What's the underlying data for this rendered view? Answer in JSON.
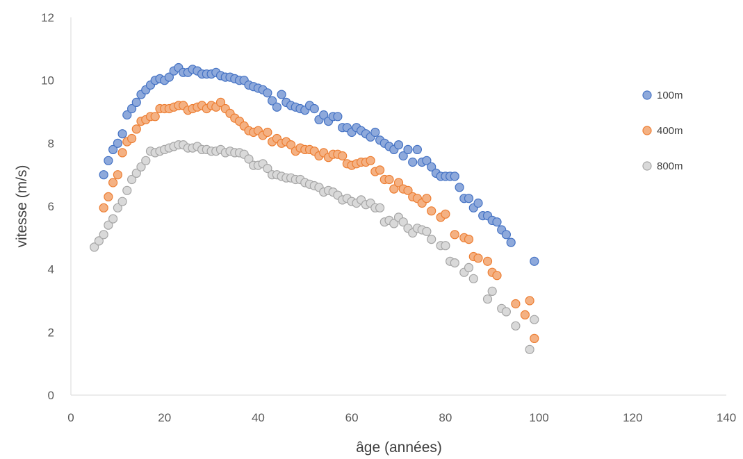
{
  "chart_data": {
    "type": "scatter",
    "xlabel": "âge (années)",
    "ylabel": "vitesse (m/s)",
    "xlim": [
      0,
      140
    ],
    "ylim": [
      0,
      12
    ],
    "xticks": [
      0,
      20,
      40,
      60,
      80,
      100,
      120,
      140
    ],
    "yticks": [
      0,
      2,
      4,
      6,
      8,
      10,
      12
    ],
    "grid": false,
    "legend_position": "right",
    "series": [
      {
        "name": "100m",
        "color": "#4472C4",
        "fill": "#8EA9DB",
        "points": [
          [
            7,
            7.0
          ],
          [
            8,
            7.45
          ],
          [
            9,
            7.8
          ],
          [
            10,
            8.0
          ],
          [
            11,
            8.3
          ],
          [
            12,
            8.9
          ],
          [
            13,
            9.1
          ],
          [
            14,
            9.3
          ],
          [
            15,
            9.55
          ],
          [
            16,
            9.7
          ],
          [
            17,
            9.85
          ],
          [
            18,
            10.0
          ],
          [
            19,
            10.05
          ],
          [
            20,
            10.0
          ],
          [
            21,
            10.1
          ],
          [
            22,
            10.3
          ],
          [
            23,
            10.4
          ],
          [
            24,
            10.25
          ],
          [
            25,
            10.25
          ],
          [
            26,
            10.35
          ],
          [
            27,
            10.3
          ],
          [
            28,
            10.2
          ],
          [
            29,
            10.2
          ],
          [
            30,
            10.2
          ],
          [
            31,
            10.25
          ],
          [
            32,
            10.15
          ],
          [
            33,
            10.1
          ],
          [
            34,
            10.1
          ],
          [
            35,
            10.05
          ],
          [
            36,
            10.0
          ],
          [
            37,
            10.0
          ],
          [
            38,
            9.85
          ],
          [
            39,
            9.8
          ],
          [
            40,
            9.75
          ],
          [
            41,
            9.7
          ],
          [
            42,
            9.6
          ],
          [
            43,
            9.35
          ],
          [
            44,
            9.15
          ],
          [
            45,
            9.55
          ],
          [
            46,
            9.3
          ],
          [
            47,
            9.2
          ],
          [
            48,
            9.15
          ],
          [
            49,
            9.1
          ],
          [
            50,
            9.05
          ],
          [
            51,
            9.2
          ],
          [
            52,
            9.1
          ],
          [
            53,
            8.75
          ],
          [
            54,
            8.9
          ],
          [
            55,
            8.7
          ],
          [
            56,
            8.85
          ],
          [
            57,
            8.85
          ],
          [
            58,
            8.5
          ],
          [
            59,
            8.5
          ],
          [
            60,
            8.35
          ],
          [
            61,
            8.5
          ],
          [
            62,
            8.4
          ],
          [
            63,
            8.3
          ],
          [
            64,
            8.2
          ],
          [
            65,
            8.35
          ],
          [
            66,
            8.1
          ],
          [
            67,
            8.0
          ],
          [
            68,
            7.9
          ],
          [
            69,
            7.8
          ],
          [
            70,
            7.95
          ],
          [
            71,
            7.6
          ],
          [
            72,
            7.8
          ],
          [
            73,
            7.4
          ],
          [
            74,
            7.8
          ],
          [
            75,
            7.4
          ],
          [
            76,
            7.45
          ],
          [
            77,
            7.25
          ],
          [
            78,
            7.05
          ],
          [
            79,
            6.95
          ],
          [
            80,
            6.95
          ],
          [
            81,
            6.95
          ],
          [
            82,
            6.95
          ],
          [
            83,
            6.6
          ],
          [
            84,
            6.25
          ],
          [
            85,
            6.25
          ],
          [
            86,
            5.95
          ],
          [
            87,
            6.1
          ],
          [
            88,
            5.7
          ],
          [
            89,
            5.7
          ],
          [
            90,
            5.55
          ],
          [
            91,
            5.5
          ],
          [
            92,
            5.25
          ],
          [
            93,
            5.1
          ],
          [
            94,
            4.85
          ],
          [
            99,
            4.25
          ]
        ]
      },
      {
        "name": "400m",
        "color": "#ED7D31",
        "fill": "#F4B183",
        "points": [
          [
            7,
            5.95
          ],
          [
            8,
            6.3
          ],
          [
            9,
            6.75
          ],
          [
            10,
            7.0
          ],
          [
            11,
            7.7
          ],
          [
            12,
            8.05
          ],
          [
            13,
            8.15
          ],
          [
            14,
            8.45
          ],
          [
            15,
            8.7
          ],
          [
            16,
            8.75
          ],
          [
            17,
            8.85
          ],
          [
            18,
            8.85
          ],
          [
            19,
            9.1
          ],
          [
            20,
            9.1
          ],
          [
            21,
            9.1
          ],
          [
            22,
            9.15
          ],
          [
            23,
            9.2
          ],
          [
            24,
            9.2
          ],
          [
            25,
            9.05
          ],
          [
            26,
            9.1
          ],
          [
            27,
            9.15
          ],
          [
            28,
            9.2
          ],
          [
            29,
            9.1
          ],
          [
            30,
            9.2
          ],
          [
            31,
            9.15
          ],
          [
            32,
            9.3
          ],
          [
            33,
            9.1
          ],
          [
            34,
            8.95
          ],
          [
            35,
            8.8
          ],
          [
            36,
            8.7
          ],
          [
            37,
            8.55
          ],
          [
            38,
            8.4
          ],
          [
            39,
            8.35
          ],
          [
            40,
            8.4
          ],
          [
            41,
            8.25
          ],
          [
            42,
            8.35
          ],
          [
            43,
            8.05
          ],
          [
            44,
            8.15
          ],
          [
            45,
            8.0
          ],
          [
            46,
            8.05
          ],
          [
            47,
            7.95
          ],
          [
            48,
            7.75
          ],
          [
            49,
            7.85
          ],
          [
            50,
            7.8
          ],
          [
            51,
            7.8
          ],
          [
            52,
            7.75
          ],
          [
            53,
            7.6
          ],
          [
            54,
            7.7
          ],
          [
            55,
            7.55
          ],
          [
            56,
            7.65
          ],
          [
            57,
            7.65
          ],
          [
            58,
            7.6
          ],
          [
            59,
            7.35
          ],
          [
            60,
            7.3
          ],
          [
            61,
            7.35
          ],
          [
            62,
            7.4
          ],
          [
            63,
            7.4
          ],
          [
            64,
            7.45
          ],
          [
            65,
            7.1
          ],
          [
            66,
            7.15
          ],
          [
            67,
            6.85
          ],
          [
            68,
            6.85
          ],
          [
            69,
            6.55
          ],
          [
            70,
            6.75
          ],
          [
            71,
            6.55
          ],
          [
            72,
            6.5
          ],
          [
            73,
            6.3
          ],
          [
            74,
            6.25
          ],
          [
            75,
            6.1
          ],
          [
            76,
            6.25
          ],
          [
            77,
            5.85
          ],
          [
            79,
            5.65
          ],
          [
            80,
            5.75
          ],
          [
            82,
            5.1
          ],
          [
            84,
            5.0
          ],
          [
            85,
            4.95
          ],
          [
            86,
            4.4
          ],
          [
            87,
            4.35
          ],
          [
            89,
            4.25
          ],
          [
            90,
            3.9
          ],
          [
            91,
            3.8
          ],
          [
            95,
            2.9
          ],
          [
            97,
            2.55
          ],
          [
            98,
            3.0
          ],
          [
            99,
            1.8
          ]
        ]
      },
      {
        "name": "800m",
        "color": "#A5A5A5",
        "fill": "#D9D9D9",
        "points": [
          [
            5,
            4.7
          ],
          [
            6,
            4.9
          ],
          [
            7,
            5.1
          ],
          [
            8,
            5.4
          ],
          [
            9,
            5.6
          ],
          [
            10,
            5.95
          ],
          [
            11,
            6.15
          ],
          [
            12,
            6.5
          ],
          [
            13,
            6.85
          ],
          [
            14,
            7.05
          ],
          [
            15,
            7.25
          ],
          [
            16,
            7.45
          ],
          [
            17,
            7.75
          ],
          [
            18,
            7.7
          ],
          [
            19,
            7.75
          ],
          [
            20,
            7.8
          ],
          [
            21,
            7.85
          ],
          [
            22,
            7.9
          ],
          [
            23,
            7.95
          ],
          [
            24,
            7.95
          ],
          [
            25,
            7.85
          ],
          [
            26,
            7.85
          ],
          [
            27,
            7.9
          ],
          [
            28,
            7.8
          ],
          [
            29,
            7.8
          ],
          [
            30,
            7.75
          ],
          [
            31,
            7.75
          ],
          [
            32,
            7.8
          ],
          [
            33,
            7.7
          ],
          [
            34,
            7.75
          ],
          [
            35,
            7.7
          ],
          [
            36,
            7.7
          ],
          [
            37,
            7.65
          ],
          [
            38,
            7.5
          ],
          [
            39,
            7.3
          ],
          [
            40,
            7.3
          ],
          [
            41,
            7.35
          ],
          [
            42,
            7.2
          ],
          [
            43,
            7.0
          ],
          [
            44,
            7.0
          ],
          [
            45,
            6.95
          ],
          [
            46,
            6.9
          ],
          [
            47,
            6.9
          ],
          [
            48,
            6.85
          ],
          [
            49,
            6.85
          ],
          [
            50,
            6.75
          ],
          [
            51,
            6.7
          ],
          [
            52,
            6.65
          ],
          [
            53,
            6.6
          ],
          [
            54,
            6.45
          ],
          [
            55,
            6.5
          ],
          [
            56,
            6.45
          ],
          [
            57,
            6.35
          ],
          [
            58,
            6.2
          ],
          [
            59,
            6.25
          ],
          [
            60,
            6.15
          ],
          [
            61,
            6.1
          ],
          [
            62,
            6.2
          ],
          [
            63,
            6.05
          ],
          [
            64,
            6.1
          ],
          [
            65,
            5.95
          ],
          [
            66,
            5.95
          ],
          [
            67,
            5.5
          ],
          [
            68,
            5.55
          ],
          [
            69,
            5.45
          ],
          [
            70,
            5.65
          ],
          [
            71,
            5.5
          ],
          [
            72,
            5.3
          ],
          [
            73,
            5.15
          ],
          [
            74,
            5.3
          ],
          [
            75,
            5.25
          ],
          [
            76,
            5.2
          ],
          [
            77,
            4.95
          ],
          [
            79,
            4.75
          ],
          [
            80,
            4.75
          ],
          [
            81,
            4.25
          ],
          [
            82,
            4.2
          ],
          [
            84,
            3.9
          ],
          [
            85,
            4.05
          ],
          [
            86,
            3.7
          ],
          [
            89,
            3.05
          ],
          [
            90,
            3.3
          ],
          [
            92,
            2.75
          ],
          [
            93,
            2.65
          ],
          [
            95,
            2.2
          ],
          [
            98,
            1.45
          ],
          [
            99,
            2.4
          ]
        ]
      }
    ]
  }
}
